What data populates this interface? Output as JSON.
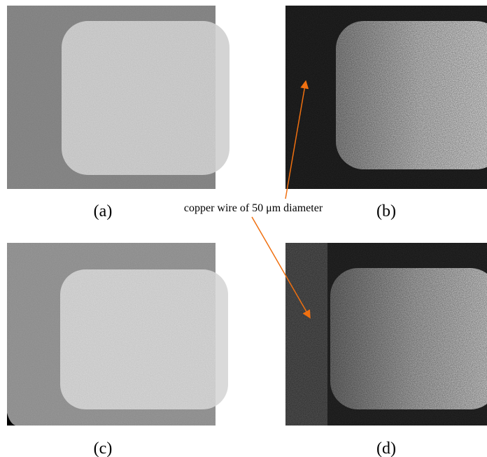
{
  "panels": [
    {
      "label": "(a)"
    },
    {
      "label": "(b)"
    },
    {
      "label": "(c)"
    },
    {
      "label": "(d)"
    }
  ],
  "annotation": "copper wire of 50 μm diameter"
}
